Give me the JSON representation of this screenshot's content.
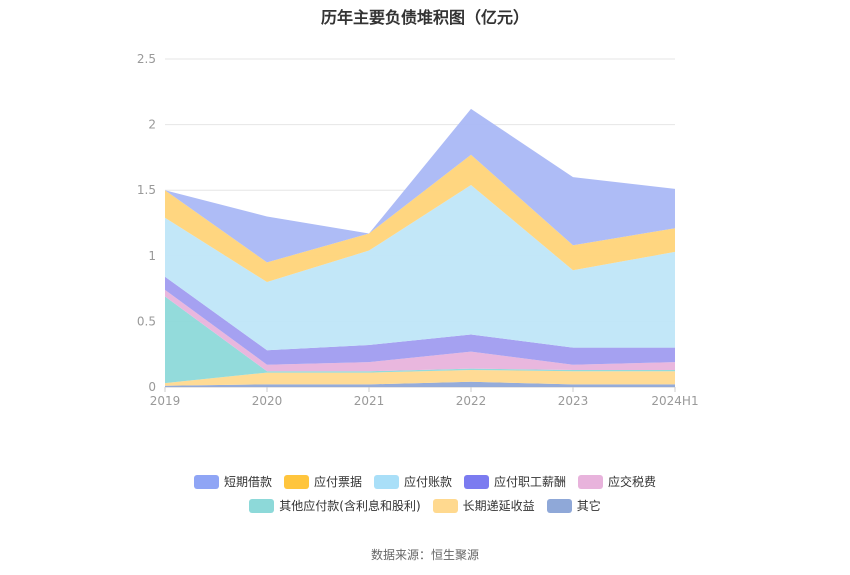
{
  "title": "历年主要负债堆积图（亿元）",
  "source": "数据来源：恒生聚源",
  "chart_data": {
    "type": "area",
    "stacked": true,
    "categories": [
      "2019",
      "2020",
      "2021",
      "2022",
      "2023",
      "2024H1"
    ],
    "ylim": [
      0,
      2.5
    ],
    "yticks": [
      "0",
      "0.5",
      "1",
      "1.5",
      "2",
      "2.5"
    ],
    "grid": true,
    "legend_position": "bottom",
    "series": [
      {
        "name": "其它",
        "color": "#8fa8d8",
        "values": [
          0.01,
          0.02,
          0.02,
          0.04,
          0.02,
          0.02
        ]
      },
      {
        "name": "长期递延收益",
        "color": "#ffd98f",
        "values": [
          0.02,
          0.09,
          0.09,
          0.09,
          0.1,
          0.1
        ]
      },
      {
        "name": "其他应付款(含利息和股利)",
        "color": "#8dd9d9",
        "values": [
          0.66,
          0.01,
          0.01,
          0.01,
          0.01,
          0.01
        ]
      },
      {
        "name": "应交税费",
        "color": "#e8b3dc",
        "values": [
          0.05,
          0.05,
          0.07,
          0.13,
          0.04,
          0.06
        ]
      },
      {
        "name": "应付职工薪酬",
        "color": "#a09cf0",
        "values": [
          0.1,
          0.11,
          0.13,
          0.13,
          0.13,
          0.11
        ]
      },
      {
        "name": "应付账款",
        "color": "#bfe6f8",
        "values": [
          0.45,
          0.52,
          0.72,
          1.14,
          0.59,
          0.73
        ]
      },
      {
        "name": "应付票据",
        "color": "#ffd479",
        "values": [
          0.21,
          0.15,
          0.13,
          0.23,
          0.19,
          0.18
        ]
      },
      {
        "name": "短期借款",
        "color": "#aab8f5",
        "values": [
          0.0,
          0.35,
          0.0,
          0.35,
          0.52,
          0.3
        ]
      }
    ]
  },
  "legend": [
    {
      "label": "短期借款",
      "color": "#8fa5f5"
    },
    {
      "label": "应付票据",
      "color": "#ffc53d"
    },
    {
      "label": "应付账款",
      "color": "#a9dff8"
    },
    {
      "label": "应付职工薪酬",
      "color": "#7b7bf0"
    },
    {
      "label": "应交税费",
      "color": "#e8b3dc"
    },
    {
      "label": "其他应付款(含利息和股利)",
      "color": "#8dd9d9"
    },
    {
      "label": "长期递延收益",
      "color": "#ffd98f"
    },
    {
      "label": "其它",
      "color": "#8fa8d8"
    }
  ]
}
